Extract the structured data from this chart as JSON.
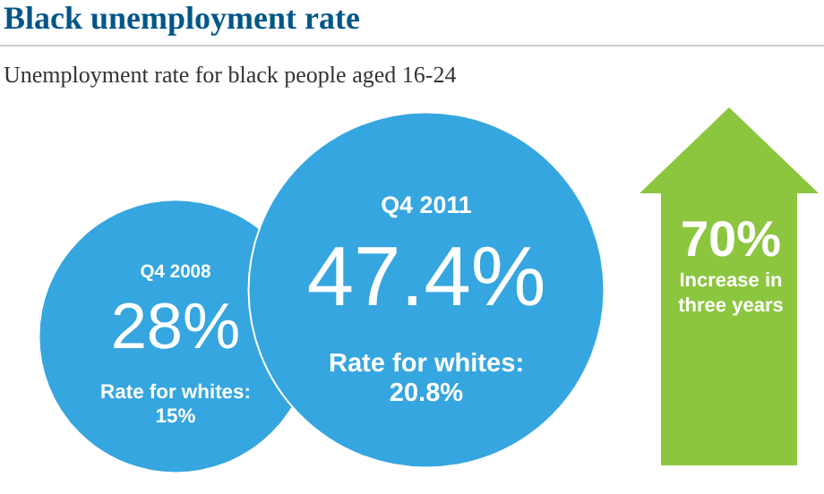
{
  "chart_data": {
    "type": "other",
    "title": "Black unemployment rate",
    "subtitle": "Unemployment rate for black people aged 16-24",
    "categories": [
      "Q4 2008",
      "Q4 2011"
    ],
    "values": [
      28,
      47.4
    ],
    "value_labels": [
      "28%",
      "47.4%"
    ],
    "colors": [
      "#35a6df",
      "#35a6df"
    ],
    "annotations": [
      "Rate for whites:\n15%",
      "Rate for whites:\n20.8%",
      "70%\nIncrease in\nthree years"
    ]
  }
}
